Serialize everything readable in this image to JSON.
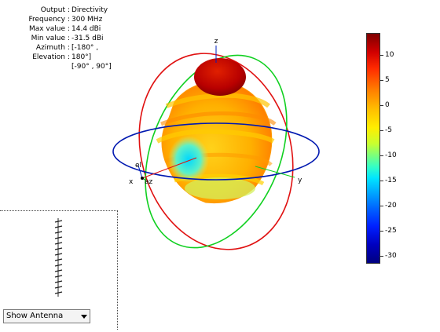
{
  "info": {
    "rows": [
      {
        "key": "Output",
        "value": "Directivity"
      },
      {
        "key": "Frequency",
        "value": "300 MHz"
      },
      {
        "key": "Max value",
        "value": "14.4 dBi"
      },
      {
        "key": "Min value",
        "value": "-31.5 dBi"
      },
      {
        "key": "Azimuth",
        "value": "[-180° ,"
      },
      {
        "key": "Elevation",
        "value": "180°]"
      }
    ],
    "extra": "[-90° , 90°]"
  },
  "axes": {
    "x": "x",
    "y": "y",
    "z": "z",
    "az": "az",
    "el": "el"
  },
  "colorbar": {
    "ticks": [
      "10",
      "5",
      "0",
      "-5",
      "-10",
      "-15",
      "-20",
      "-25",
      "-30"
    ],
    "colors": [
      "#7f0000",
      "#ff2a00",
      "#ffbf00",
      "#7dff7a",
      "#00aaff",
      "#00007f"
    ]
  },
  "dropdown": {
    "selected": "Show Antenna"
  }
}
